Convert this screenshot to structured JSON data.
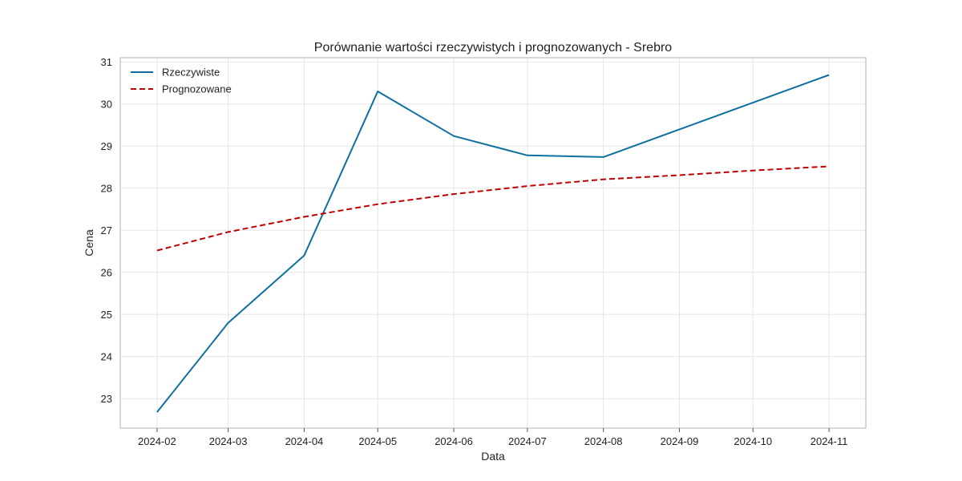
{
  "chart_data": {
    "type": "line",
    "title": "Porównanie wartości rzeczywistych i prognozowanych - Srebro",
    "xlabel": "Data",
    "ylabel": "Cena",
    "x": [
      "2024-02",
      "2024-03",
      "2024-04",
      "2024-05",
      "2024-06",
      "2024-07",
      "2024-08",
      "2024-09",
      "2024-10",
      "2024-11"
    ],
    "x_dates": [
      "2024-01-31",
      "2024-02-29",
      "2024-03-31",
      "2024-04-30",
      "2024-05-31",
      "2024-06-30",
      "2024-07-31",
      "2024-08-31",
      "2024-09-30",
      "2024-10-31"
    ],
    "yticks": [
      23,
      24,
      25,
      26,
      27,
      28,
      29,
      30,
      31
    ],
    "ylim": [
      22.3,
      31.1
    ],
    "grid": true,
    "legend_position": "top-left",
    "series": [
      {
        "name": "Rzeczywiste",
        "color": "#0e6fa1",
        "style": "solid",
        "x": [
          "2024-01-31",
          "2024-02-29",
          "2024-03-31",
          "2024-04-30",
          "2024-05-31",
          "2024-06-30",
          "2024-07-31",
          "2024-10-31"
        ],
        "y": [
          22.68,
          24.8,
          26.4,
          30.3,
          29.24,
          28.78,
          28.74,
          30.69
        ]
      },
      {
        "name": "Prognozowane",
        "color": "#c00000",
        "style": "dashed",
        "x": [
          "2024-01-31",
          "2024-02-29",
          "2024-03-31",
          "2024-04-30",
          "2024-05-31",
          "2024-06-30",
          "2024-07-31",
          "2024-08-31",
          "2024-09-30",
          "2024-10-31"
        ],
        "y": [
          26.52,
          26.96,
          27.32,
          27.62,
          27.86,
          28.05,
          28.21,
          28.31,
          28.42,
          28.52
        ]
      }
    ]
  }
}
